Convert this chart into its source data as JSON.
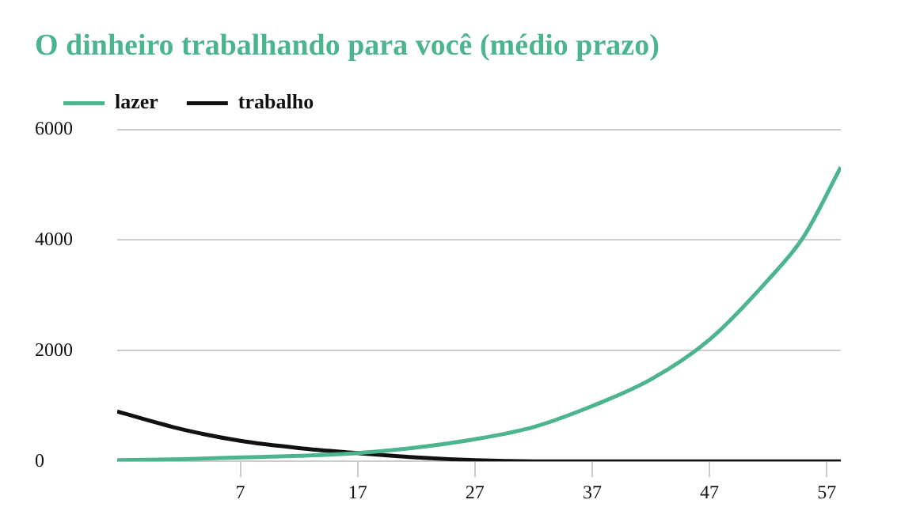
{
  "chart_data": {
    "type": "line",
    "title": "O dinheiro trabalhando para você (médio prazo)",
    "xlim": [
      -3.5,
      58.2
    ],
    "xticks": [
      7,
      17,
      27,
      37,
      47,
      57
    ],
    "ylim": [
      0,
      6000
    ],
    "yticks": [
      0,
      2000,
      4000,
      6000
    ],
    "grid": "y",
    "legend": "top left",
    "marker": "none",
    "line_style": "solid",
    "series": [
      {
        "name": "lazer",
        "color": "#4db58e",
        "x": [
          -3.5,
          2,
          7,
          12,
          17,
          22,
          27,
          32,
          37,
          42,
          47,
          52,
          55,
          58.2
        ],
        "values": [
          20,
          40,
          70,
          100,
          150,
          250,
          400,
          620,
          1000,
          1480,
          2200,
          3280,
          4050,
          5320
        ]
      },
      {
        "name": "trabalho",
        "color": "#111111",
        "x": [
          -3.5,
          2,
          7,
          12,
          17,
          22,
          27,
          32,
          37,
          47,
          58.2
        ],
        "values": [
          900,
          580,
          370,
          240,
          150,
          70,
          20,
          0,
          0,
          0,
          0
        ]
      }
    ]
  }
}
